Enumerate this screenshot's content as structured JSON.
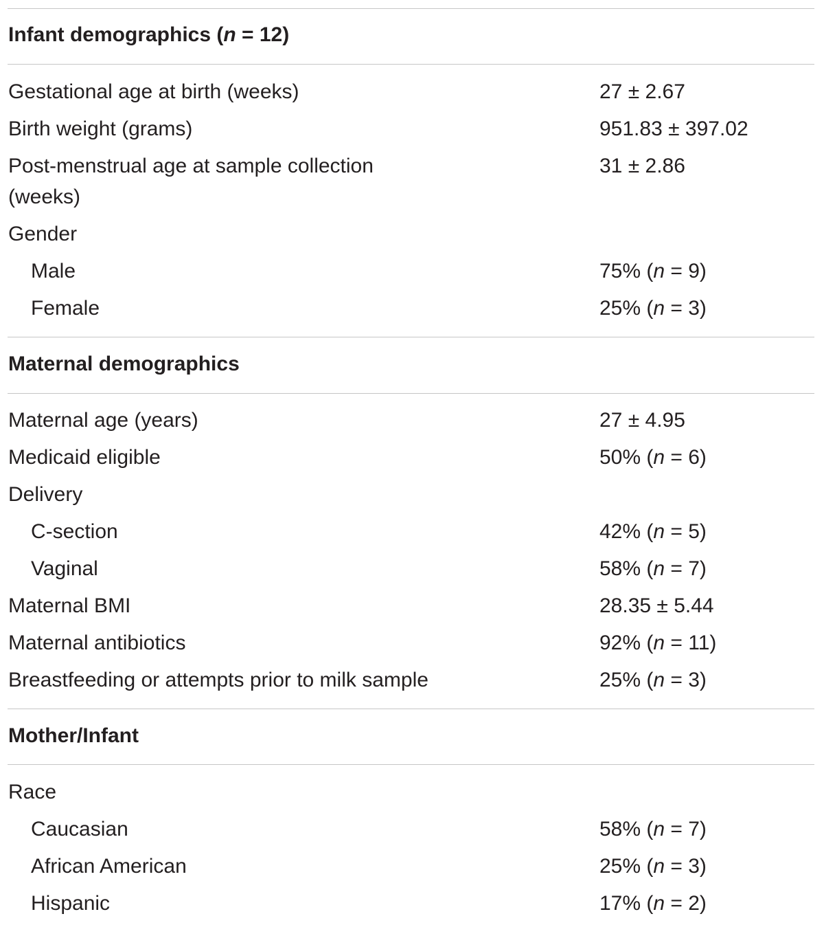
{
  "sections": [
    {
      "title_prefix": "Infant demographics (",
      "title_n": "n",
      "title_suffix": " = 12)",
      "rows": [
        {
          "label": "Gestational age at birth (weeks)",
          "value": "27 ± 2.67"
        },
        {
          "label": "Birth weight (grams)",
          "value": "951.83 ± 397.02"
        },
        {
          "label_line1": "Post-menstrual age at sample collection",
          "label_line2": "(weeks)",
          "value": "31 ± 2.86"
        },
        {
          "label": "Gender"
        },
        {
          "label": "Male",
          "value_pre": "75% (",
          "value_n": "n",
          "value_post": " = 9)"
        },
        {
          "label": "Female",
          "value_pre": "25% (",
          "value_n": "n",
          "value_post": " = 3)"
        }
      ]
    },
    {
      "title": "Maternal demographics",
      "rows": [
        {
          "label": "Maternal age (years)",
          "value": "27 ± 4.95"
        },
        {
          "label": "Medicaid eligible",
          "value_pre": "50% (",
          "value_n": "n",
          "value_post": " = 6)"
        },
        {
          "label": "Delivery"
        },
        {
          "label": "C-section",
          "value_pre": "42% (",
          "value_n": "n",
          "value_post": " = 5)"
        },
        {
          "label": "Vaginal",
          "value_pre": "58% (",
          "value_n": "n",
          "value_post": " = 7)"
        },
        {
          "label": "Maternal BMI",
          "value": "28.35 ± 5.44"
        },
        {
          "label": "Maternal antibiotics",
          "value_pre": "92% (",
          "value_n": "n",
          "value_post": " = 11)"
        },
        {
          "label": "Breastfeeding or attempts prior to milk sample",
          "value_pre": "25% (",
          "value_n": "n",
          "value_post": " = 3)"
        }
      ]
    },
    {
      "title": "Mother/Infant",
      "rows": [
        {
          "label": "Race"
        },
        {
          "label": "Caucasian",
          "value_pre": "58% (",
          "value_n": "n",
          "value_post": " = 7)"
        },
        {
          "label": "African American",
          "value_pre": "25% (",
          "value_n": "n",
          "value_post": " = 3)"
        },
        {
          "label": "Hispanic",
          "value_pre": "17% (",
          "value_n": "n",
          "value_post": " = 2)"
        }
      ]
    }
  ]
}
